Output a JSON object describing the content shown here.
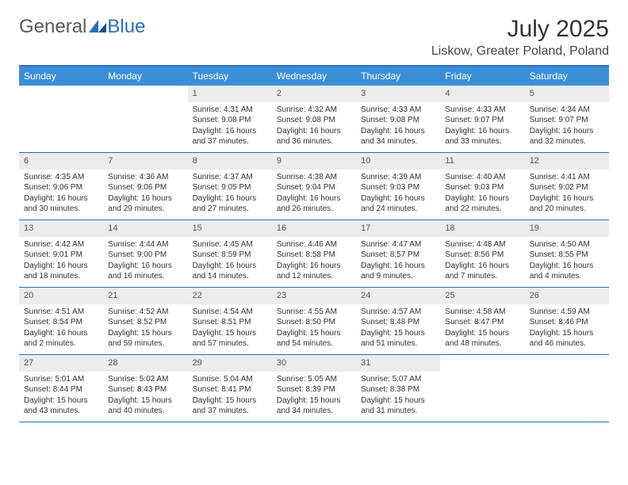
{
  "logo": {
    "part1": "General",
    "part2": "Blue"
  },
  "title": "July 2025",
  "location": "Liskow, Greater Poland, Poland",
  "day_names": [
    "Sunday",
    "Monday",
    "Tuesday",
    "Wednesday",
    "Thursday",
    "Friday",
    "Saturday"
  ],
  "colors": {
    "header_bar": "#3b8fd6",
    "rule": "#2a6db8",
    "daynum_bg": "#ececec",
    "text": "#333333"
  },
  "weeks": [
    [
      null,
      null,
      {
        "n": "1",
        "sr": "Sunrise: 4:31 AM",
        "ss": "Sunset: 9:08 PM",
        "d1": "Daylight: 16 hours",
        "d2": "and 37 minutes."
      },
      {
        "n": "2",
        "sr": "Sunrise: 4:32 AM",
        "ss": "Sunset: 9:08 PM",
        "d1": "Daylight: 16 hours",
        "d2": "and 36 minutes."
      },
      {
        "n": "3",
        "sr": "Sunrise: 4:33 AM",
        "ss": "Sunset: 9:08 PM",
        "d1": "Daylight: 16 hours",
        "d2": "and 34 minutes."
      },
      {
        "n": "4",
        "sr": "Sunrise: 4:33 AM",
        "ss": "Sunset: 9:07 PM",
        "d1": "Daylight: 16 hours",
        "d2": "and 33 minutes."
      },
      {
        "n": "5",
        "sr": "Sunrise: 4:34 AM",
        "ss": "Sunset: 9:07 PM",
        "d1": "Daylight: 16 hours",
        "d2": "and 32 minutes."
      }
    ],
    [
      {
        "n": "6",
        "sr": "Sunrise: 4:35 AM",
        "ss": "Sunset: 9:06 PM",
        "d1": "Daylight: 16 hours",
        "d2": "and 30 minutes."
      },
      {
        "n": "7",
        "sr": "Sunrise: 4:36 AM",
        "ss": "Sunset: 9:06 PM",
        "d1": "Daylight: 16 hours",
        "d2": "and 29 minutes."
      },
      {
        "n": "8",
        "sr": "Sunrise: 4:37 AM",
        "ss": "Sunset: 9:05 PM",
        "d1": "Daylight: 16 hours",
        "d2": "and 27 minutes."
      },
      {
        "n": "9",
        "sr": "Sunrise: 4:38 AM",
        "ss": "Sunset: 9:04 PM",
        "d1": "Daylight: 16 hours",
        "d2": "and 26 minutes."
      },
      {
        "n": "10",
        "sr": "Sunrise: 4:39 AM",
        "ss": "Sunset: 9:03 PM",
        "d1": "Daylight: 16 hours",
        "d2": "and 24 minutes."
      },
      {
        "n": "11",
        "sr": "Sunrise: 4:40 AM",
        "ss": "Sunset: 9:03 PM",
        "d1": "Daylight: 16 hours",
        "d2": "and 22 minutes."
      },
      {
        "n": "12",
        "sr": "Sunrise: 4:41 AM",
        "ss": "Sunset: 9:02 PM",
        "d1": "Daylight: 16 hours",
        "d2": "and 20 minutes."
      }
    ],
    [
      {
        "n": "13",
        "sr": "Sunrise: 4:42 AM",
        "ss": "Sunset: 9:01 PM",
        "d1": "Daylight: 16 hours",
        "d2": "and 18 minutes."
      },
      {
        "n": "14",
        "sr": "Sunrise: 4:44 AM",
        "ss": "Sunset: 9:00 PM",
        "d1": "Daylight: 16 hours",
        "d2": "and 16 minutes."
      },
      {
        "n": "15",
        "sr": "Sunrise: 4:45 AM",
        "ss": "Sunset: 8:59 PM",
        "d1": "Daylight: 16 hours",
        "d2": "and 14 minutes."
      },
      {
        "n": "16",
        "sr": "Sunrise: 4:46 AM",
        "ss": "Sunset: 8:58 PM",
        "d1": "Daylight: 16 hours",
        "d2": "and 12 minutes."
      },
      {
        "n": "17",
        "sr": "Sunrise: 4:47 AM",
        "ss": "Sunset: 8:57 PM",
        "d1": "Daylight: 16 hours",
        "d2": "and 9 minutes."
      },
      {
        "n": "18",
        "sr": "Sunrise: 4:48 AM",
        "ss": "Sunset: 8:56 PM",
        "d1": "Daylight: 16 hours",
        "d2": "and 7 minutes."
      },
      {
        "n": "19",
        "sr": "Sunrise: 4:50 AM",
        "ss": "Sunset: 8:55 PM",
        "d1": "Daylight: 16 hours",
        "d2": "and 4 minutes."
      }
    ],
    [
      {
        "n": "20",
        "sr": "Sunrise: 4:51 AM",
        "ss": "Sunset: 8:54 PM",
        "d1": "Daylight: 16 hours",
        "d2": "and 2 minutes."
      },
      {
        "n": "21",
        "sr": "Sunrise: 4:52 AM",
        "ss": "Sunset: 8:52 PM",
        "d1": "Daylight: 15 hours",
        "d2": "and 59 minutes."
      },
      {
        "n": "22",
        "sr": "Sunrise: 4:54 AM",
        "ss": "Sunset: 8:51 PM",
        "d1": "Daylight: 15 hours",
        "d2": "and 57 minutes."
      },
      {
        "n": "23",
        "sr": "Sunrise: 4:55 AM",
        "ss": "Sunset: 8:50 PM",
        "d1": "Daylight: 15 hours",
        "d2": "and 54 minutes."
      },
      {
        "n": "24",
        "sr": "Sunrise: 4:57 AM",
        "ss": "Sunset: 8:48 PM",
        "d1": "Daylight: 15 hours",
        "d2": "and 51 minutes."
      },
      {
        "n": "25",
        "sr": "Sunrise: 4:58 AM",
        "ss": "Sunset: 8:47 PM",
        "d1": "Daylight: 15 hours",
        "d2": "and 48 minutes."
      },
      {
        "n": "26",
        "sr": "Sunrise: 4:59 AM",
        "ss": "Sunset: 8:46 PM",
        "d1": "Daylight: 15 hours",
        "d2": "and 46 minutes."
      }
    ],
    [
      {
        "n": "27",
        "sr": "Sunrise: 5:01 AM",
        "ss": "Sunset: 8:44 PM",
        "d1": "Daylight: 15 hours",
        "d2": "and 43 minutes."
      },
      {
        "n": "28",
        "sr": "Sunrise: 5:02 AM",
        "ss": "Sunset: 8:43 PM",
        "d1": "Daylight: 15 hours",
        "d2": "and 40 minutes."
      },
      {
        "n": "29",
        "sr": "Sunrise: 5:04 AM",
        "ss": "Sunset: 8:41 PM",
        "d1": "Daylight: 15 hours",
        "d2": "and 37 minutes."
      },
      {
        "n": "30",
        "sr": "Sunrise: 5:05 AM",
        "ss": "Sunset: 8:39 PM",
        "d1": "Daylight: 15 hours",
        "d2": "and 34 minutes."
      },
      {
        "n": "31",
        "sr": "Sunrise: 5:07 AM",
        "ss": "Sunset: 8:38 PM",
        "d1": "Daylight: 15 hours",
        "d2": "and 31 minutes."
      },
      null,
      null
    ]
  ]
}
